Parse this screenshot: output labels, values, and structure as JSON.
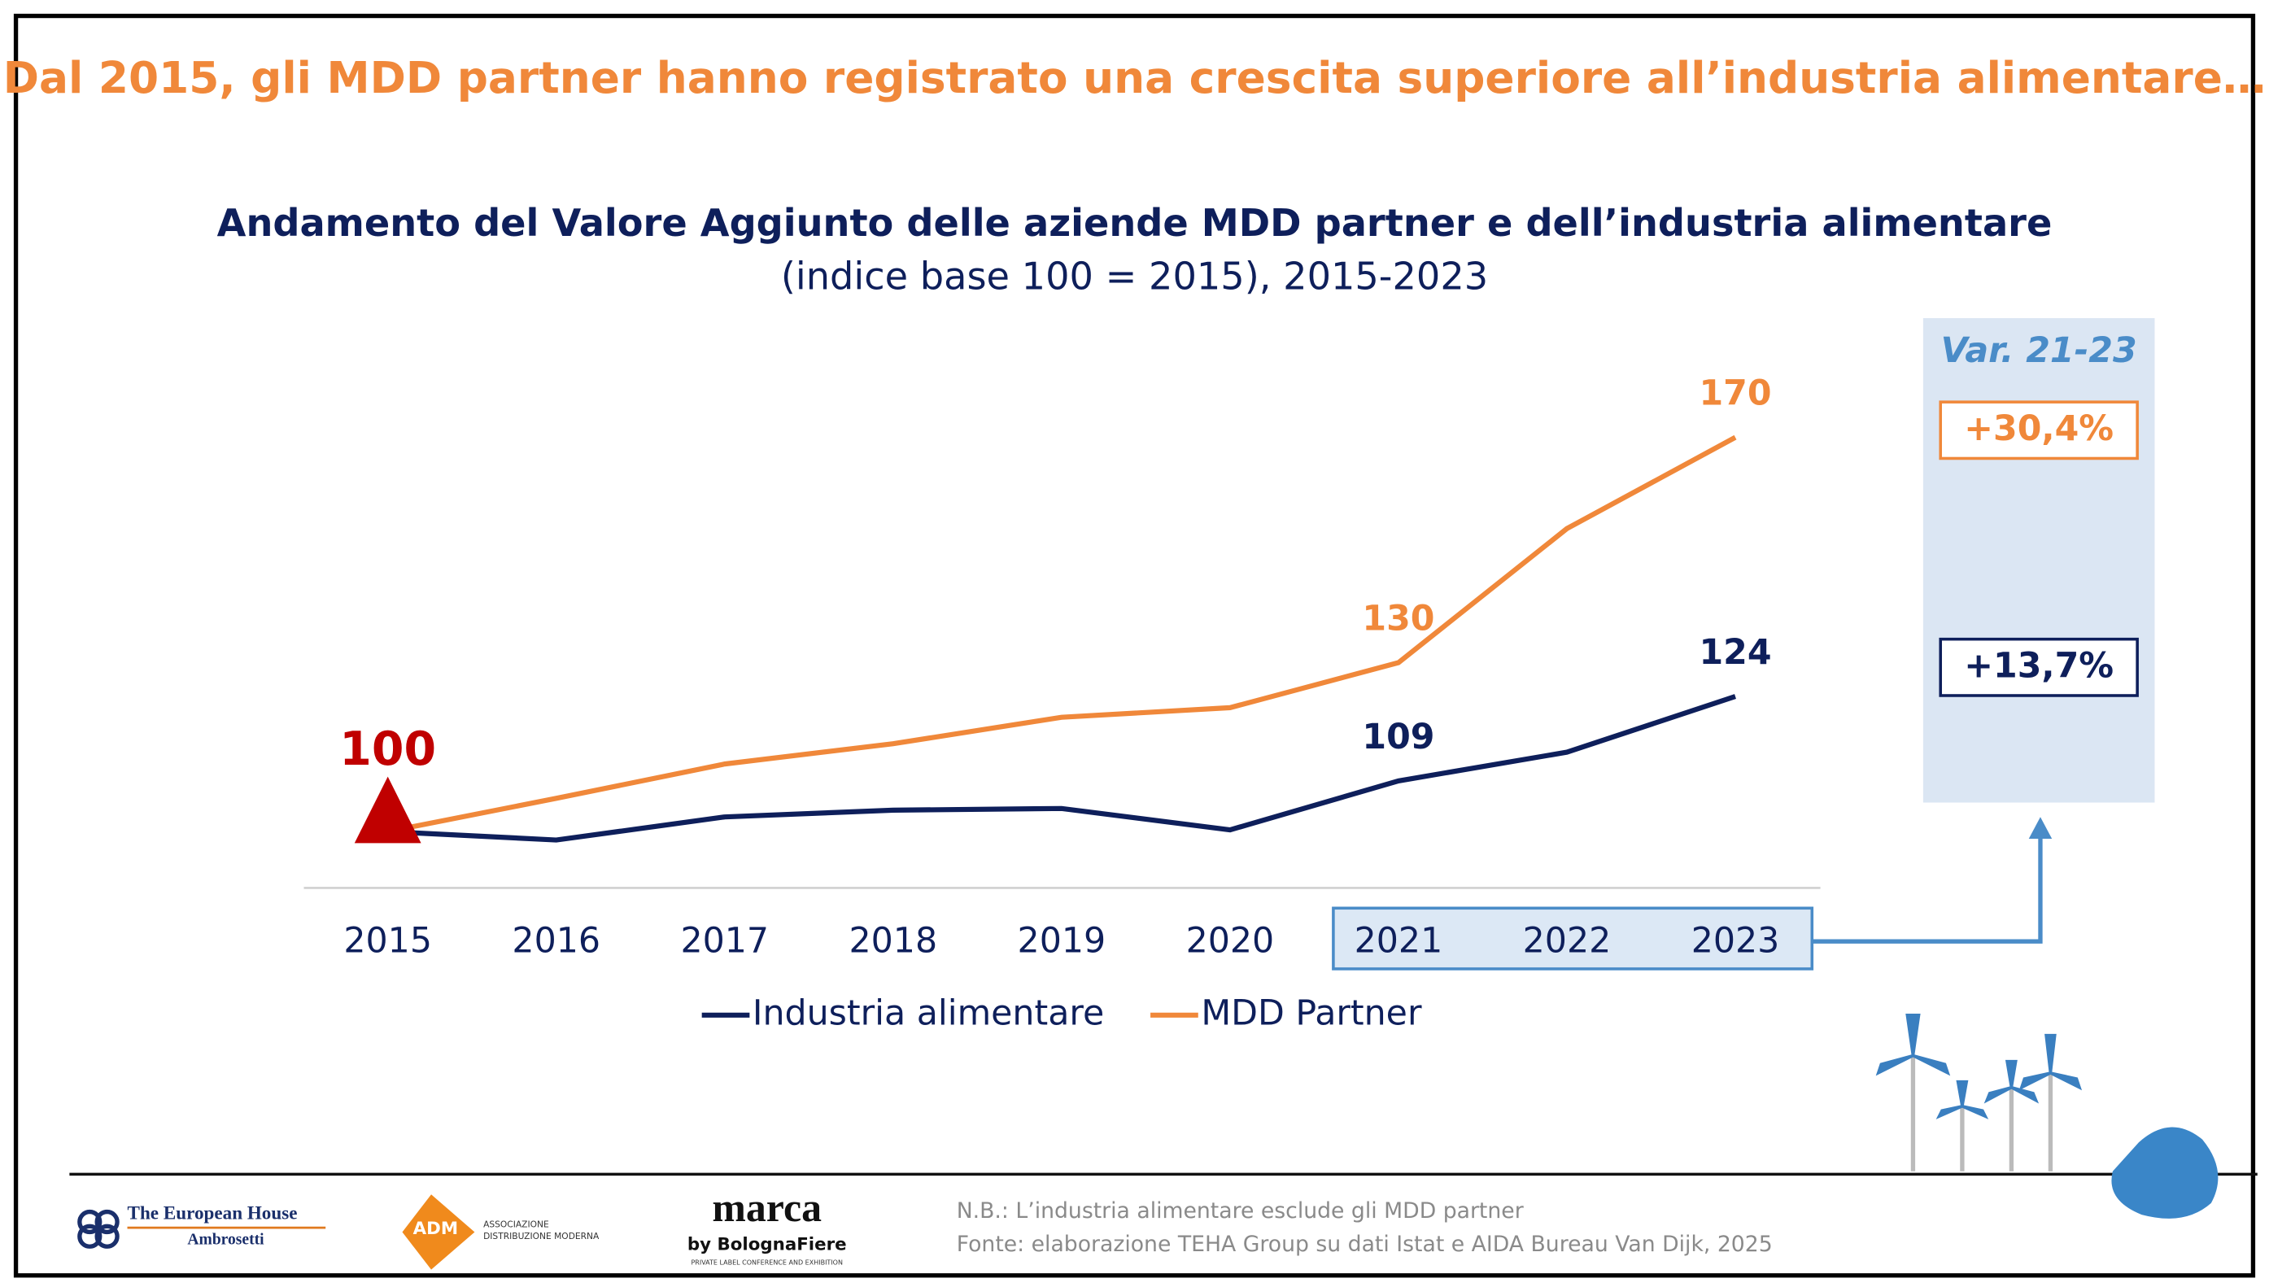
{
  "slide_title": "Dal 2015, gli MDD partner hanno registrato una crescita superiore all’industria alimentare…",
  "chart_data": {
    "type": "line",
    "title": "Andamento del Valore Aggiunto delle aziende MDD partner e dell’industria alimentare",
    "subtitle": "(indice base 100 = 2015), 2015-2023",
    "categories": [
      "2015",
      "2016",
      "2017",
      "2018",
      "2019",
      "2020",
      "2021",
      "2022",
      "2023"
    ],
    "series": [
      {
        "name": "Industria alimentare",
        "color": "#0e1f5b",
        "values": [
          100,
          98.5,
          102.6,
          103.8,
          104.1,
          100.3,
          109,
          114.1,
          124
        ]
      },
      {
        "name": "MDD Partner",
        "color": "#f0883a",
        "values": [
          100,
          105.9,
          112,
          115.6,
          120.3,
          122,
          130,
          153.8,
          170
        ]
      }
    ],
    "ylim": [
      90,
      175
    ],
    "y_axis_visible": false,
    "grid": false,
    "data_labels_at": [
      "2021",
      "2023"
    ],
    "start_marker_color": "#c00000",
    "highlight_range": [
      "2021",
      "2023"
    ],
    "variation": {
      "title": "Var. 21-23",
      "labels": [
        "+13,7%",
        "+30,4%"
      ]
    },
    "legend": "bottom"
  },
  "footer": {
    "note": "N.B.: L’industria alimentare esclude gli MDD partner",
    "source": "Fonte: elaborazione TEHA Group su dati Istat e AIDA Bureau Van Dijk, 2025",
    "logos": {
      "teha_1": "The European House",
      "teha_2": "Ambrosetti",
      "adm": "ADM",
      "adm_name_1": "ASSOCIAZIONE",
      "adm_name_2": "DISTRIBUZIONE MODERNA",
      "marca": "marca",
      "marca_by": "by BolognaFiere",
      "marca_sub": "PRIVATE LABEL CONFERENCE AND EXHIBITION"
    }
  }
}
